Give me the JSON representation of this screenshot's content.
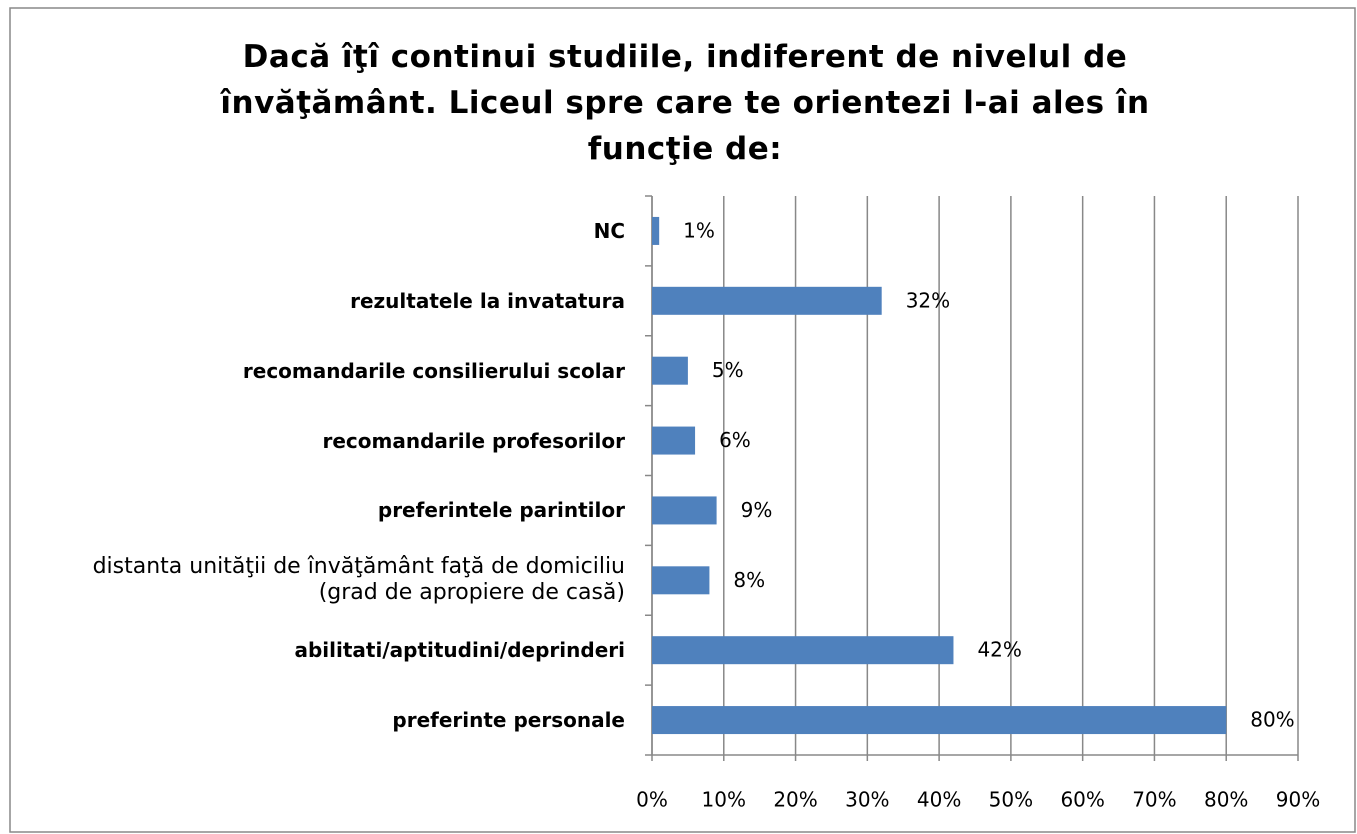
{
  "chart_data": {
    "type": "bar",
    "orientation": "horizontal",
    "title": "Dacă îţî continui studiile, indiferent de nivelul de învăţământ. Liceul spre care te orientezi l-ai ales în funcţie de:",
    "categories": [
      "NC",
      "rezultatele la invatatura",
      "recomandarile consilierului scolar",
      "recomandarile profesorilor",
      "preferintele parintilor",
      "distanta unităţii de învăţământ faţă de domiciliu (grad de apropiere de casă)",
      "abilitati/aptitudini/deprinderi",
      "preferinte personale"
    ],
    "values": [
      1,
      32,
      5,
      6,
      9,
      8,
      42,
      80
    ],
    "value_labels": [
      "1%",
      "32%",
      "5%",
      "6%",
      "9%",
      "8%",
      "42%",
      "80%"
    ],
    "color": "#4f81bd",
    "xlim": [
      0,
      90
    ],
    "xticks": [
      {
        "value": 0,
        "label": "0%"
      },
      {
        "value": 10,
        "label": "10%"
      },
      {
        "value": 20,
        "label": "20%"
      },
      {
        "value": 30,
        "label": "30%"
      },
      {
        "value": 40,
        "label": "40%"
      },
      {
        "value": 50,
        "label": "50%"
      },
      {
        "value": 60,
        "label": "60%"
      },
      {
        "value": 70,
        "label": "70%"
      },
      {
        "value": 80,
        "label": "80%"
      },
      {
        "value": 90,
        "label": "90%"
      }
    ],
    "grid": true
  }
}
